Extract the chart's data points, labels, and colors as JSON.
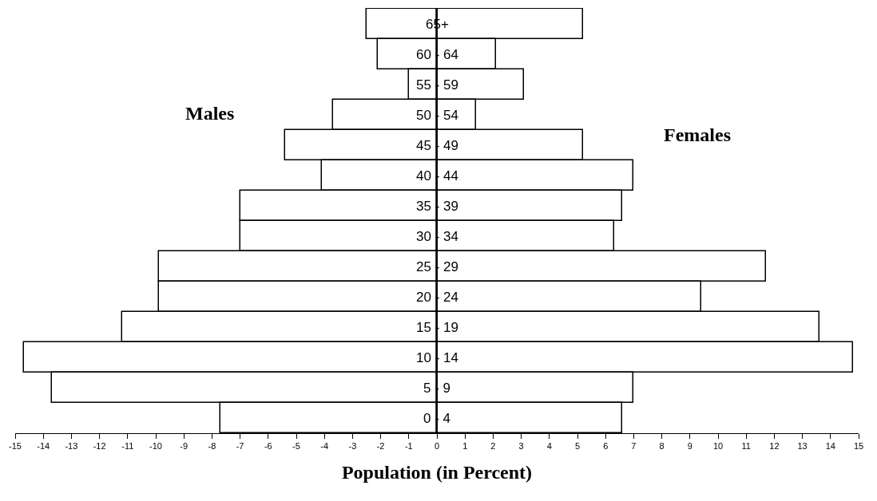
{
  "chart_data": {
    "type": "bar",
    "orientation": "horizontal",
    "xlabel": "Population (in Percent)",
    "categories": [
      "65+",
      "60 - 64",
      "55 - 59",
      "50 - 54",
      "45 - 49",
      "40 - 44",
      "35 - 39",
      "30 - 34",
      "25 - 29",
      "20 - 24",
      "15 - 19",
      "10 - 14",
      "5 - 9",
      "0 - 4"
    ],
    "series": [
      {
        "name": "Males",
        "color": "#ffffff",
        "values": [
          -2.5,
          -2.1,
          -1.0,
          -3.7,
          -5.4,
          -4.1,
          -7.0,
          -7.0,
          -9.9,
          -9.9,
          -11.2,
          -14.7,
          -13.7,
          -7.7
        ]
      },
      {
        "name": "Females",
        "color": "#ffffff",
        "values": [
          5.2,
          2.1,
          3.1,
          1.4,
          5.2,
          7.0,
          6.6,
          6.3,
          11.7,
          9.4,
          13.6,
          14.8,
          7.0,
          6.6
        ]
      }
    ],
    "xlim": [
      -15,
      15
    ],
    "xticks": [
      -15,
      -14,
      -13,
      -12,
      -11,
      -10,
      -9,
      -8,
      -7,
      -6,
      -5,
      -4,
      -3,
      -2,
      -1,
      0,
      1,
      2,
      3,
      4,
      5,
      6,
      7,
      8,
      9,
      10,
      11,
      12,
      13,
      14,
      15
    ],
    "stacked": true,
    "legend": false
  }
}
